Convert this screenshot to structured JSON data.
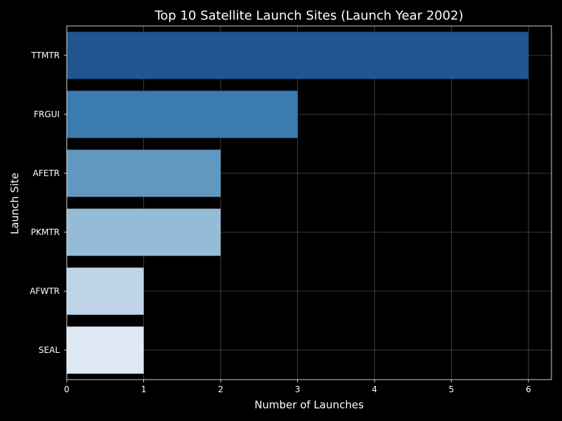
{
  "chart_data": {
    "type": "bar",
    "orientation": "horizontal",
    "title": "Top 10 Satellite Launch Sites (Launch Year 2002)",
    "xlabel": "Number of Launches",
    "ylabel": "Launch Site",
    "categories": [
      "TTMTR",
      "FRGUI",
      "AFETR",
      "PKMTR",
      "AFWTR",
      "SEAL"
    ],
    "values": [
      6,
      3,
      2,
      2,
      1,
      1
    ],
    "bar_colors": [
      "#1f5591",
      "#3a7bb0",
      "#6199c2",
      "#94bcd6",
      "#bfd4e6",
      "#dfe9f5"
    ],
    "xlim": [
      0,
      6.3
    ],
    "xticks": [
      0,
      1,
      2,
      3,
      4,
      5,
      6
    ],
    "grid": true,
    "legend": false,
    "background_color": "#000000",
    "text_color": "#ffffff"
  }
}
